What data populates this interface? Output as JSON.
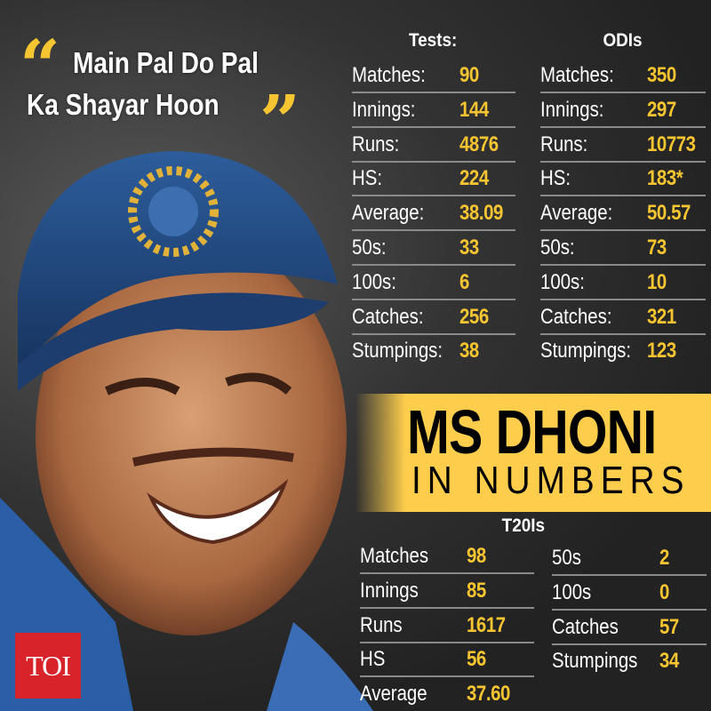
{
  "quote": {
    "open_mark": "“",
    "close_mark": "”",
    "line1": "Main Pal Do Pal",
    "line2": "Ka Shayar Hoon"
  },
  "tests": {
    "heading": "Tests:",
    "rows": [
      {
        "label": "Matches:",
        "value": "90"
      },
      {
        "label": "Innings:",
        "value": "144"
      },
      {
        "label": "Runs:",
        "value": "4876"
      },
      {
        "label": "HS:",
        "value": "224"
      },
      {
        "label": "Average:",
        "value": "38.09"
      },
      {
        "label": "50s:",
        "value": "33"
      },
      {
        "label": "100s:",
        "value": "6"
      },
      {
        "label": "Catches:",
        "value": "256"
      },
      {
        "label": "Stumpings:",
        "value": "38"
      }
    ]
  },
  "odis": {
    "heading": "ODIs",
    "rows": [
      {
        "label": "Matches:",
        "value": "350"
      },
      {
        "label": "Innings:",
        "value": "297"
      },
      {
        "label": "Runs:",
        "value": "10773"
      },
      {
        "label": "HS:",
        "value": "183*"
      },
      {
        "label": "Average:",
        "value": "50.57"
      },
      {
        "label": "50s:",
        "value": "73"
      },
      {
        "label": "100s:",
        "value": "10"
      },
      {
        "label": "Catches:",
        "value": "321"
      },
      {
        "label": "Stumpings:",
        "value": "123"
      }
    ]
  },
  "banner": {
    "title": "MS DHONI",
    "subtitle": "IN NUMBERS",
    "color": "#fdcd4b"
  },
  "t20is": {
    "heading": "T20Is",
    "left": [
      {
        "label": "Matches",
        "value": "98"
      },
      {
        "label": "Innings",
        "value": "85"
      },
      {
        "label": "Runs",
        "value": "1617"
      },
      {
        "label": "HS",
        "value": "56"
      },
      {
        "label": "Average",
        "value": "37.60"
      }
    ],
    "right": [
      {
        "label": "50s",
        "value": "2"
      },
      {
        "label": "100s",
        "value": "0"
      },
      {
        "label": "Catches",
        "value": "57"
      },
      {
        "label": "Stumpings",
        "value": "34"
      }
    ]
  },
  "logo": {
    "text": "TOI",
    "color": "#d8232a"
  },
  "colors": {
    "accent": "#f7c531",
    "background": "#2a2a2a"
  }
}
